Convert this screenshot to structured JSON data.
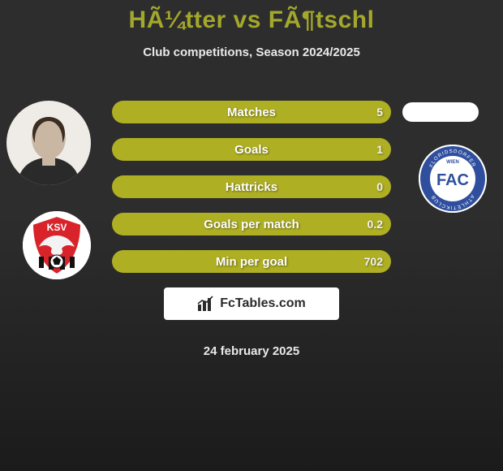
{
  "colors": {
    "bg_top": "#2d2d2d",
    "bg_bottom": "#1b1b1b",
    "title": "#a3a72b",
    "subtitle": "#e9e9e9",
    "stat_bg": "#afaf23",
    "stat_fill": "#6f6f1d",
    "stat_text": "#ffffff",
    "stat_val": "#f2f2f2",
    "brand_bg": "#ffffff",
    "brand_text": "#2b2b2b",
    "date": "#e9e9e9"
  },
  "title": {
    "text": "HÃ¼tter vs FÃ¶tschl",
    "fontsize": 30
  },
  "subtitle": {
    "text": "Club competitions, Season 2024/2025",
    "fontsize": 15
  },
  "date": {
    "text": "24 february 2025",
    "fontsize": 15
  },
  "brand": {
    "text": "FcTables.com",
    "fontsize": 16
  },
  "stats": {
    "label_fontsize": 15,
    "value_fontsize": 14,
    "rows": [
      {
        "label": "Matches",
        "left": "",
        "right": "5",
        "fill_pct": 0
      },
      {
        "label": "Goals",
        "left": "",
        "right": "1",
        "fill_pct": 0
      },
      {
        "label": "Hattricks",
        "left": "",
        "right": "0",
        "fill_pct": 0
      },
      {
        "label": "Goals per match",
        "left": "",
        "right": "0.2",
        "fill_pct": 0
      },
      {
        "label": "Min per goal",
        "left": "",
        "right": "702",
        "fill_pct": 0
      }
    ]
  },
  "left_player": {
    "bg": "#f0ede8"
  },
  "left_club": {
    "name": "KSV",
    "shield_fill": "#d8232a",
    "stripe": "#111111",
    "text": "#ffffff"
  },
  "right_club": {
    "name": "FAC",
    "ring": "#2f4f9e",
    "inner": "#ffffff",
    "text": "#2f4f9e",
    "subtext": "WIEN"
  }
}
